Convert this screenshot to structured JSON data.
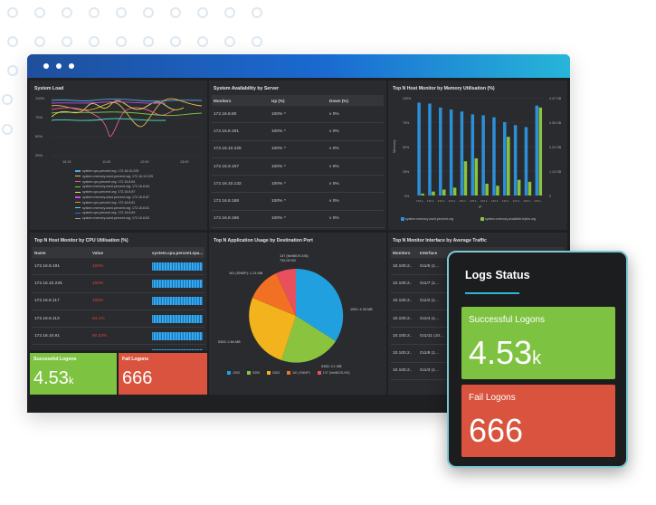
{
  "window": {
    "controls": [
      "close",
      "minimize",
      "maximize"
    ]
  },
  "system_load": {
    "title": "System Load",
    "y_ticks": [
      "100%",
      "75%",
      "50%",
      "25%"
    ],
    "x_ticks": [
      "10:15",
      "11:00",
      "12:00",
      "13:00"
    ],
    "legend": [
      {
        "label": "system.cpu.percent.org: 172.16.10.225",
        "color": "#4aa8e8"
      },
      {
        "label": "system.memory.used.percent.org: 172.16.10.225",
        "color": "#e8b84a"
      },
      {
        "label": "system.cpu.percent.org: 172.16.8.84",
        "color": "#e85a9a"
      },
      {
        "label": "system.memory.used.percent.org: 172.16.8.84",
        "color": "#7ec242"
      },
      {
        "label": "system.cpu.percent.org: 172.16.8.87",
        "color": "#e8e34a"
      },
      {
        "label": "system.memory.used.percent.org: 172.16.8.87",
        "color": "#c04ae8"
      },
      {
        "label": "system.cpu.percent.org: 172.16.8.81",
        "color": "#e8844a"
      },
      {
        "label": "system.memory.used.percent.org: 172.16.8.81",
        "color": "#4ae8c6"
      },
      {
        "label": "system.cpu.percent.org: 172.16.8.83",
        "color": "#2f6fe8"
      },
      {
        "label": "system.memory.used.percent.org: 172.16.8.83",
        "color": "#9aa2aa"
      }
    ]
  },
  "availability": {
    "title": "System Availability by Server",
    "columns": [
      "Monitors",
      "Up (%)",
      "Down (%)"
    ],
    "rows": [
      {
        "monitor": "172.16.8.80",
        "up": "100% ^",
        "down": "v 0%"
      },
      {
        "monitor": "172.16.8.191",
        "up": "100% ^",
        "down": "v 0%"
      },
      {
        "monitor": "172.16.10.225",
        "up": "100% ^",
        "down": "v 0%"
      },
      {
        "monitor": "172.16.9.107",
        "up": "100% ^",
        "down": "v 0%"
      },
      {
        "monitor": "172.16.10.132",
        "up": "100% ^",
        "down": "v 0%"
      },
      {
        "monitor": "172.16.8.188",
        "up": "100% ^",
        "down": "v 0%"
      },
      {
        "monitor": "172.16.8.196",
        "up": "100% ^",
        "down": "v 0%"
      },
      {
        "monitor": "172.16.8.57",
        "up": "100% ^",
        "down": "v 0%"
      }
    ]
  },
  "memory_chart": {
    "title": "Top N Host Monitor by Memory Utilisation (%)",
    "y_left_ticks": [
      "100%",
      "75%",
      "50%",
      "25%",
      "0%"
    ],
    "y_right_ticks": [
      "4.47 GB",
      "3.35 GB",
      "2.24 GB",
      "1.10 GB",
      "0"
    ],
    "y_label": "Memory",
    "x_label": "IP",
    "categories": [
      "172.1..",
      "172.1..",
      "172.1..",
      "172.1..",
      "172.1..",
      "172.1..",
      "172.1..",
      "172.1..",
      "172.1..",
      "172.1..",
      "172.1..",
      "172.1.."
    ],
    "legend": [
      {
        "label": "system.memory.used.percent.org",
        "color": "#2b8fd9"
      },
      {
        "label": "system.memory.available.bytes.org",
        "color": "#8ac43f"
      }
    ]
  },
  "chart_data": {
    "type": "bar",
    "title": "Top N Host Monitor by Memory Utilisation (%)",
    "categories": [
      "172.1..",
      "172.1..",
      "172.1..",
      "172.1..",
      "172.1..",
      "172.1..",
      "172.1..",
      "172.1..",
      "172.1..",
      "172.1..",
      "172.1..",
      "172.1.."
    ],
    "series": [
      {
        "name": "system.memory.used.percent.org",
        "values": [
          95,
          94,
          90,
          88,
          86,
          83,
          82,
          80,
          75,
          72,
          70,
          92
        ]
      },
      {
        "name": "system.memory.available.bytes.org",
        "values": [
          2,
          4,
          6,
          8,
          35,
          38,
          12,
          10,
          60,
          16,
          14,
          90
        ]
      }
    ],
    "xlabel": "IP",
    "ylabel": "Memory",
    "ylim": [
      0,
      100
    ]
  },
  "cpu_table": {
    "title": "Top N Host Monitor by CPU Utilisation (%)",
    "columns": [
      "Name",
      "Value",
      "system.cpu.percent.spa..."
    ],
    "rows": [
      {
        "name": "172.16.8.191",
        "value": "100%",
        "cls": "red"
      },
      {
        "name": "172.16.10.225",
        "value": "100%",
        "cls": "red"
      },
      {
        "name": "172.16.8.117",
        "value": "100%",
        "cls": "red"
      },
      {
        "name": "172.16.8.113",
        "value": "94.1%",
        "cls": "red"
      },
      {
        "name": "172.16.10.81",
        "value": "90.23%",
        "cls": "red"
      },
      {
        "name": "172.16.8.183",
        "value": "82.86%",
        "cls": "orange"
      }
    ]
  },
  "small_tiles": {
    "success_label": "Successful Logons",
    "success_value": "4.53",
    "success_unit": "k",
    "fail_label": "Fail Logons",
    "fail_value": "666"
  },
  "app_usage": {
    "title": "Top N Application Usage by Destination Port",
    "labels": {
      "l1": "137 (NetBIOS-NS):",
      "l1b": "730.05 KB",
      "l2": "161 (SNMP): 1.13 MB",
      "l3": "5353: 2.84 MB",
      "l4": "5355: 3.1 MB",
      "l5": "1900: 4.26 MB"
    },
    "legend": [
      {
        "label": "1900",
        "color": "#21a0e0"
      },
      {
        "label": "5355",
        "color": "#8ac43f"
      },
      {
        "label": "5353",
        "color": "#f2b31d"
      },
      {
        "label": "161 (SNMP)",
        "color": "#f27024"
      },
      {
        "label": "137 (NetBIOS-NS)",
        "color": "#e8505b"
      }
    ]
  },
  "interface_table": {
    "title": "Top N Monitor Interface by Average Traffic",
    "columns": [
      "Monitors",
      "Interface"
    ],
    "rows": [
      {
        "monitor": "10.100.2..",
        "iface": "Gi1/5 (1..."
      },
      {
        "monitor": "10.100.2..",
        "iface": "Gi1/7 (1..."
      },
      {
        "monitor": "10.100.2..",
        "iface": "Gi1/2 (1..."
      },
      {
        "monitor": "10.100.2..",
        "iface": "Gi1/4 (1..."
      },
      {
        "monitor": "10.100.2..",
        "iface": "Gi1/11 (10..."
      },
      {
        "monitor": "10.100.2..",
        "iface": "Gi1/8 (1..."
      },
      {
        "monitor": "10.100.2..",
        "iface": "Gi1/3 (1..."
      }
    ]
  },
  "logs_status": {
    "title": "Logs Status",
    "success_label": "Successful Logons",
    "success_value": "4.53",
    "success_unit": "k",
    "fail_label": "Fail Logons",
    "fail_value": "666"
  }
}
